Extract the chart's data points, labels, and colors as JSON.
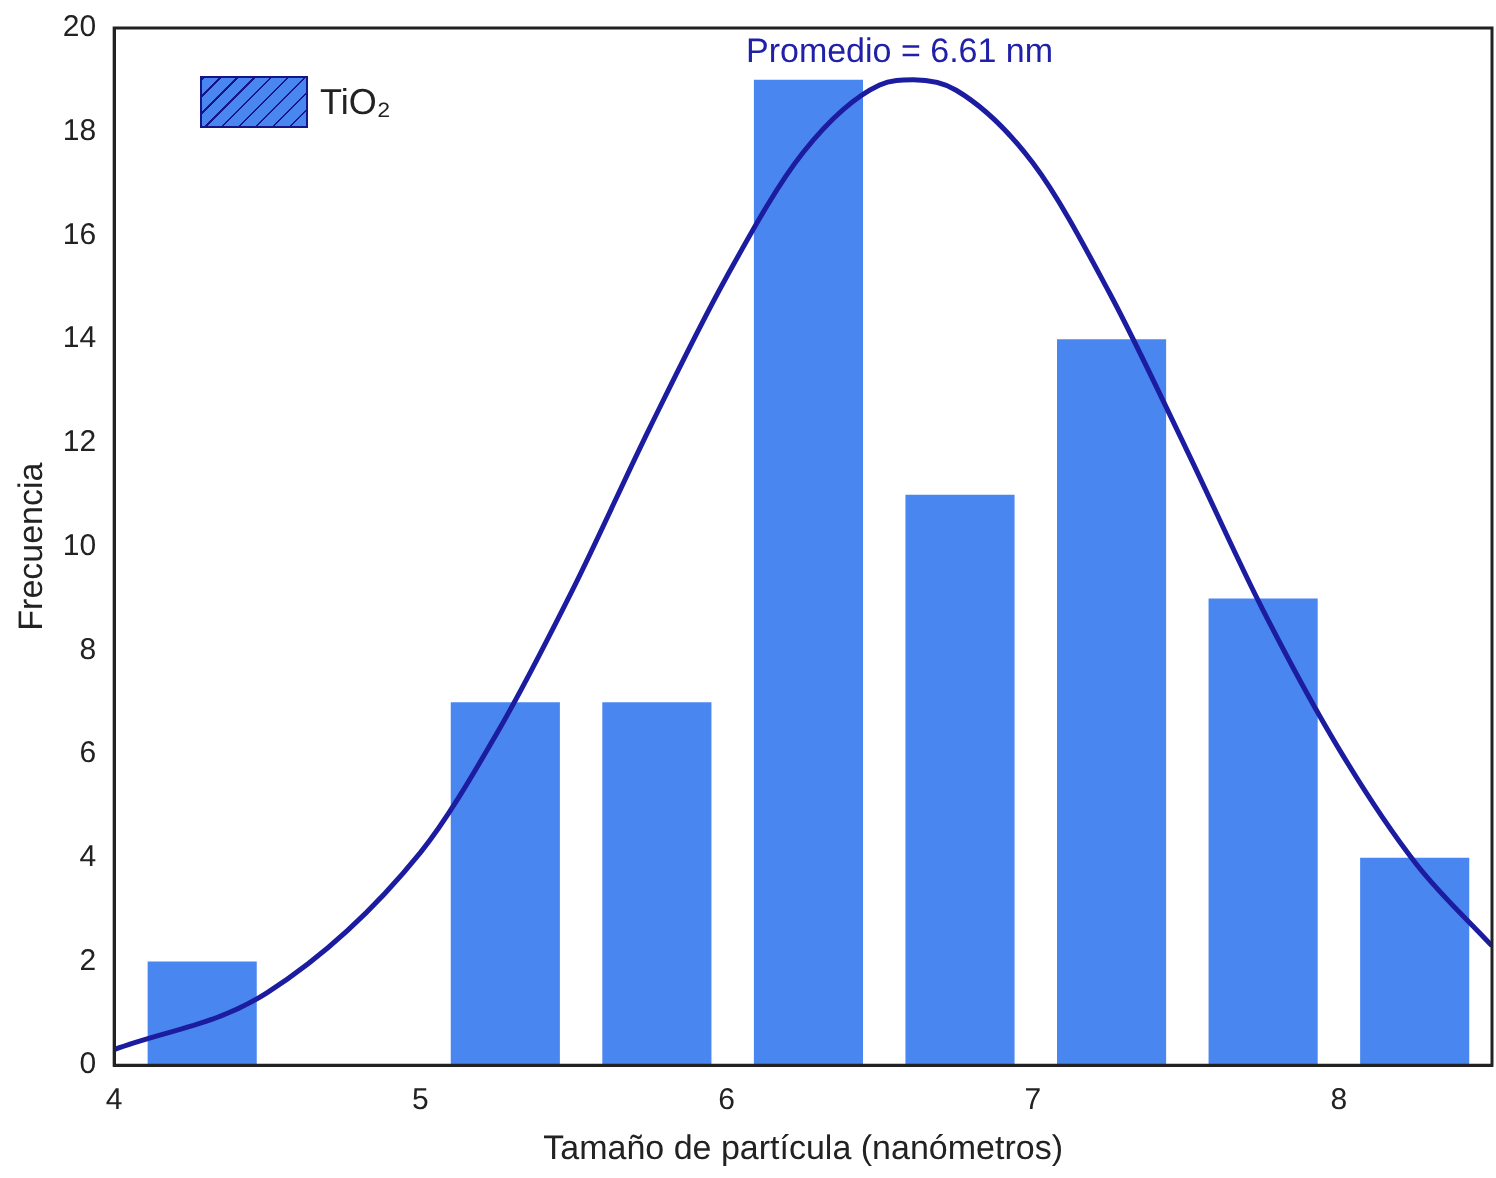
{
  "chart_data": {
    "type": "histogram",
    "xlabel": "Tamaño de partícula (nanómetros)",
    "ylabel": "Frecuencia",
    "annotations": [
      "Promedio = 6.61 nm"
    ],
    "bins": [
      4.04,
      4.535,
      5.03,
      5.525,
      6.02,
      6.515,
      7.01,
      7.505,
      8.0,
      8.495
    ],
    "series": [
      {
        "name": "TiO₂",
        "color": "#4a86f0",
        "values": [
          2,
          0,
          7,
          7,
          19,
          11,
          14,
          9,
          4
        ]
      },
      {
        "type": "line",
        "color": "#1c1ca0",
        "x": [
          4,
          4.5,
          5,
          5.25,
          5.5,
          5.75,
          6,
          6.25,
          6.5,
          6.61,
          6.75,
          7,
          7.25,
          7.5,
          7.75,
          8,
          8.25,
          8.5
        ],
        "values": [
          0.3,
          1.4,
          4.1,
          6.4,
          9.2,
          12.3,
          15.2,
          17.6,
          18.9,
          19,
          18.8,
          17.4,
          14.9,
          11.9,
          8.8,
          6.1,
          3.9,
          2.3
        ]
      }
    ],
    "xlim": [
      4,
      8.5
    ],
    "xticks": [
      4,
      5,
      6,
      7,
      8
    ],
    "ylim": [
      0,
      20
    ],
    "yticks": [
      0,
      2,
      4,
      6,
      8,
      10,
      12,
      14,
      16,
      18,
      20
    ],
    "grid": false,
    "legend": "top left",
    "marker": "none",
    "line_style": "solid"
  }
}
